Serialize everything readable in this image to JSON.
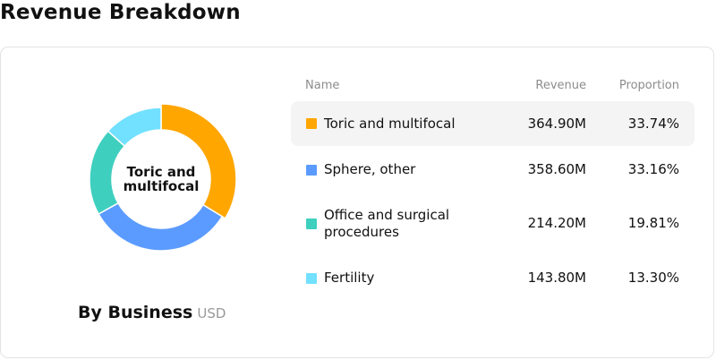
{
  "page": {
    "title": "Revenue Breakdown"
  },
  "table": {
    "headers": {
      "name": "Name",
      "revenue": "Revenue",
      "proportion": "Proportion"
    },
    "rows": [
      {
        "name": "Toric and multifocal",
        "revenue": "364.90M",
        "proportion": "33.74%",
        "color": "#FFA600",
        "highlighted": true
      },
      {
        "name": "Sphere, other",
        "revenue": "358.60M",
        "proportion": "33.16%",
        "color": "#5B9BFF",
        "highlighted": false
      },
      {
        "name": "Office and surgical procedures",
        "revenue": "214.20M",
        "proportion": "19.81%",
        "color": "#3ECFBF",
        "highlighted": false
      },
      {
        "name": "Fertility",
        "revenue": "143.80M",
        "proportion": "13.30%",
        "color": "#72E0FF",
        "highlighted": false
      }
    ]
  },
  "donut": {
    "center_label": "Toric and multifocal"
  },
  "caption": {
    "title": "By Business",
    "unit": "USD"
  },
  "chart_data": {
    "type": "pie",
    "title": "By Business",
    "unit": "USD",
    "categories": [
      "Toric and multifocal",
      "Sphere, other",
      "Office and surgical procedures",
      "Fertility"
    ],
    "values": [
      364.9,
      358.6,
      214.2,
      143.8
    ],
    "proportions": [
      33.74,
      33.16,
      19.81,
      13.3
    ],
    "colors": [
      "#FFA600",
      "#5B9BFF",
      "#3ECFBF",
      "#72E0FF"
    ],
    "highlighted": "Toric and multifocal",
    "legend": "table-right"
  }
}
